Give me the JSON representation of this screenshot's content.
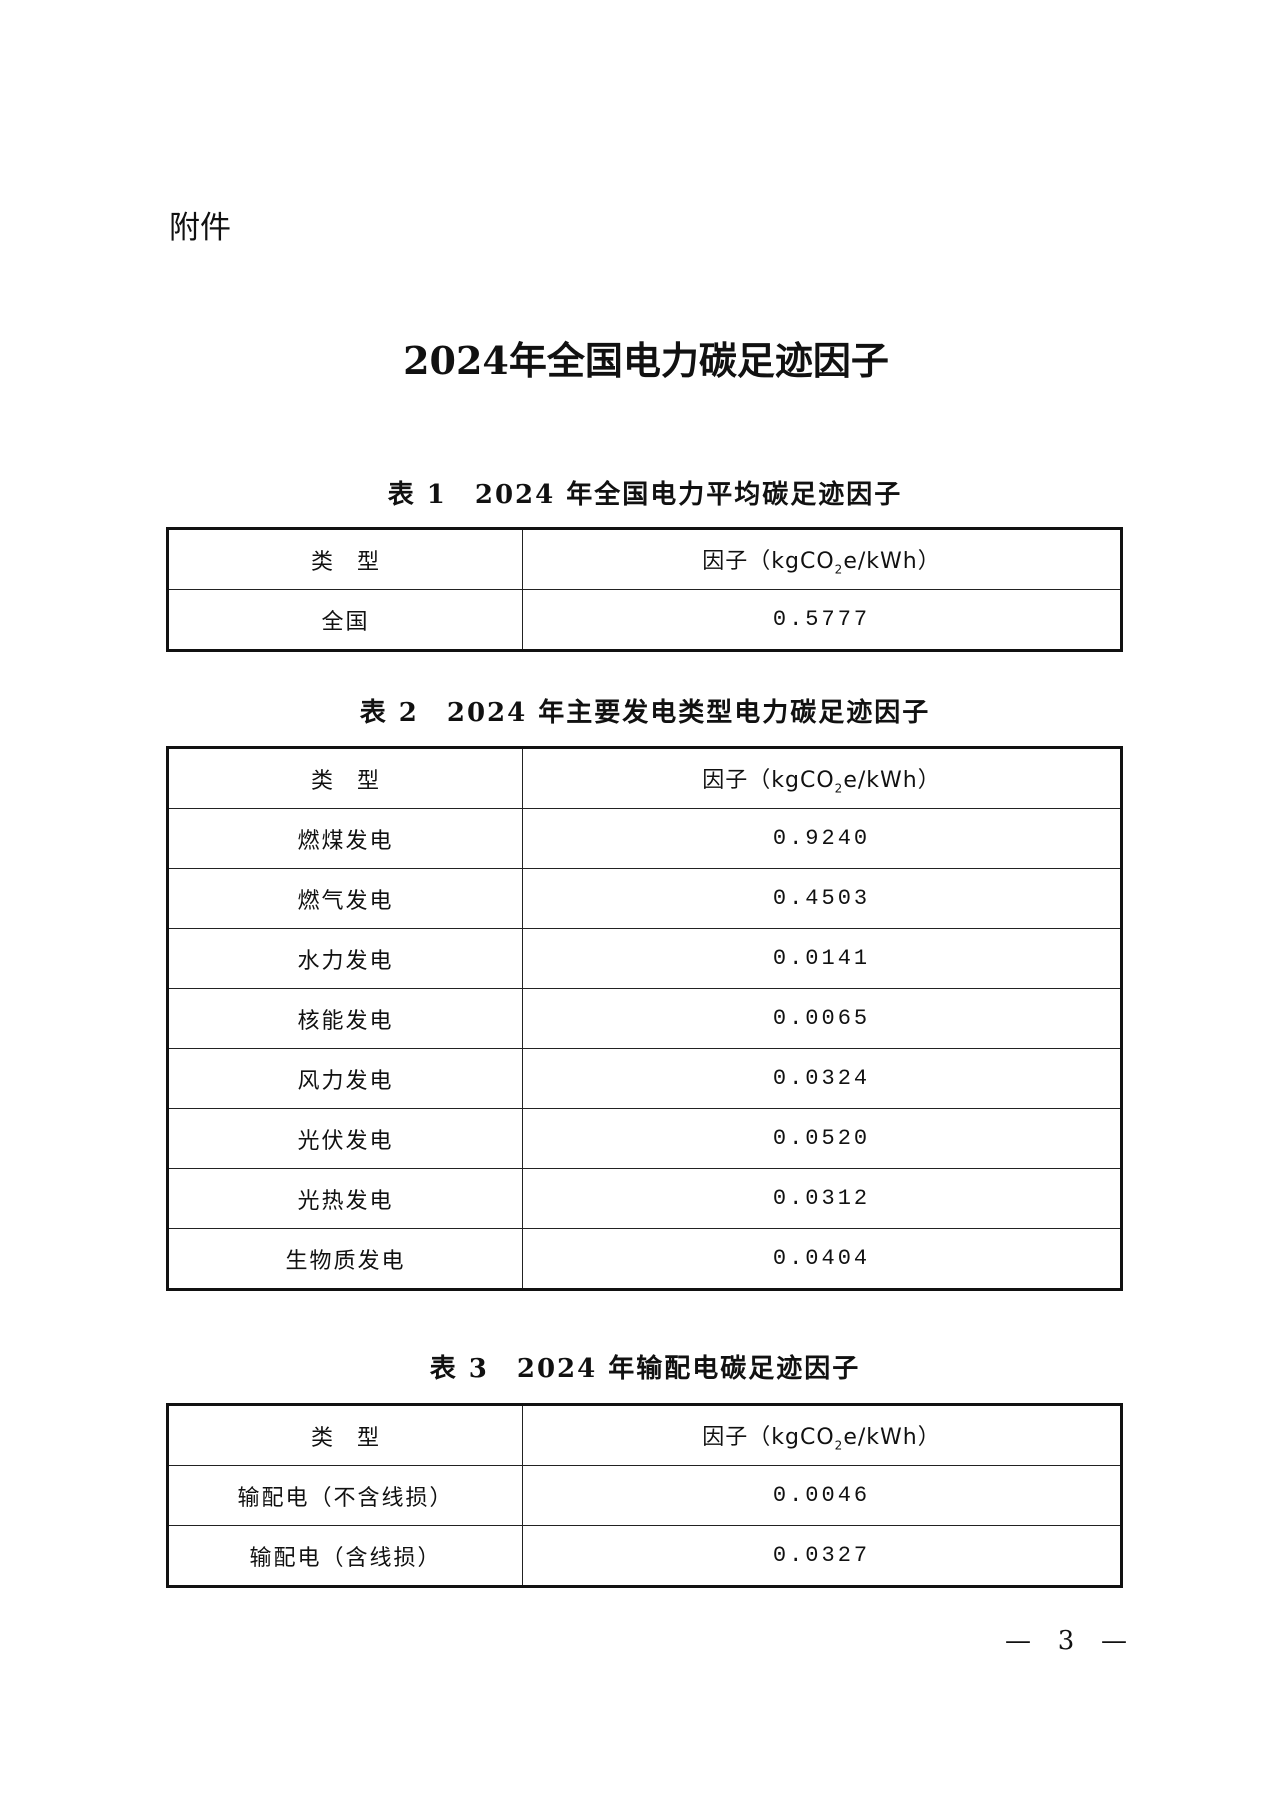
{
  "attachment_label": "附件",
  "title": "2024年全国电力碳足迹因子",
  "header": {
    "type": "类　型",
    "factor_prefix": "因子（kgCO",
    "factor_sub": "2",
    "factor_suffix": "e/kWh）"
  },
  "tables": [
    {
      "caption": "表 1　2024 年全国电力平均碳足迹因子",
      "rows": [
        {
          "type": "全国",
          "value": "0.5777"
        }
      ]
    },
    {
      "caption": "表 2　2024 年主要发电类型电力碳足迹因子",
      "rows": [
        {
          "type": "燃煤发电",
          "value": "0.9240"
        },
        {
          "type": "燃气发电",
          "value": "0.4503"
        },
        {
          "type": "水力发电",
          "value": "0.0141"
        },
        {
          "type": "核能发电",
          "value": "0.0065"
        },
        {
          "type": "风力发电",
          "value": "0.0324"
        },
        {
          "type": "光伏发电",
          "value": "0.0520"
        },
        {
          "type": "光热发电",
          "value": "0.0312"
        },
        {
          "type": "生物质发电",
          "value": "0.0404"
        }
      ]
    },
    {
      "caption": "表 3　2024 年输配电碳足迹因子",
      "rows": [
        {
          "type": "输配电（不含线损）",
          "value": "0.0046"
        },
        {
          "type": "输配电（含线损）",
          "value": "0.0327"
        }
      ]
    }
  ],
  "page_number": {
    "dash": "—",
    "number": "3"
  }
}
